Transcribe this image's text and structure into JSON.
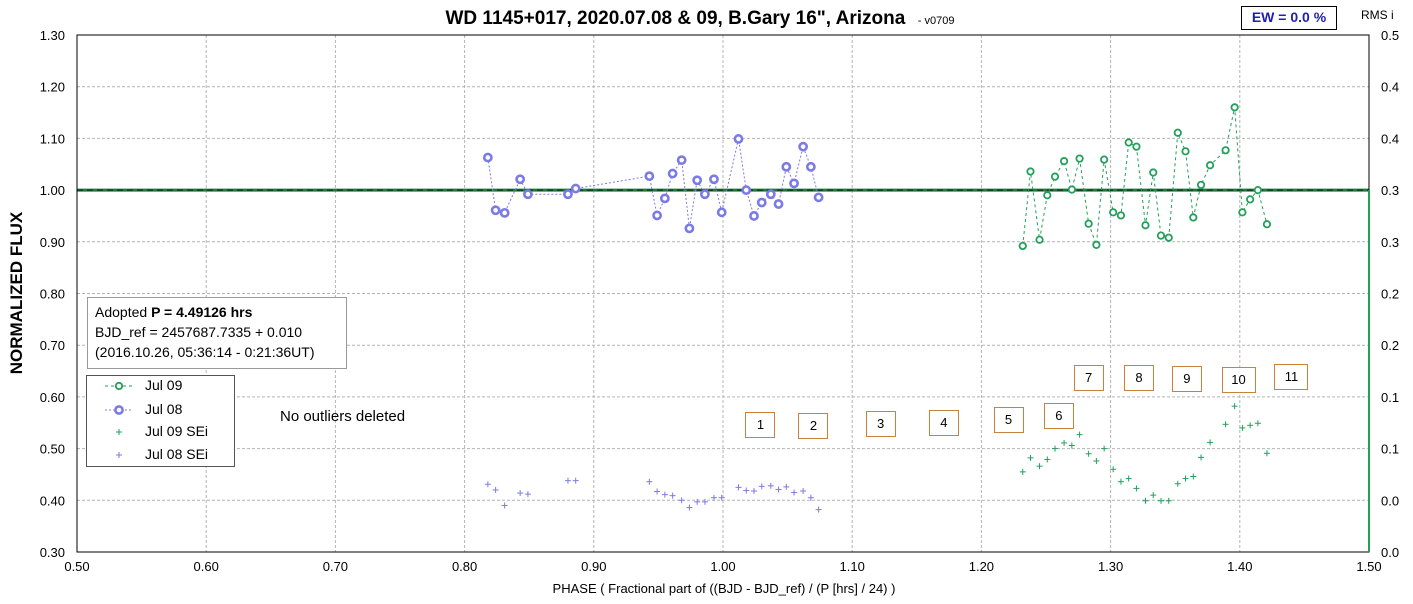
{
  "chart_data": {
    "type": "scatter",
    "title": "WD 1145+017, 2020.07.08 & 09, B.Gary 16\", Arizona",
    "title_suffix": "-  v0709",
    "xlabel": "PHASE ( Fractional part of ((BJD - BJD_ref) / (P [hrs] / 24) )",
    "ylabel": "NORMALIZED FLUX",
    "y2label": "RMS i",
    "xlim": [
      0.5,
      1.5
    ],
    "ylim": [
      0.3,
      1.3
    ],
    "y2lim": [
      0.0,
      0.5
    ],
    "x_ticks": [
      "0.50",
      "0.60",
      "0.70",
      "0.80",
      "0.90",
      "1.00",
      "1.10",
      "1.20",
      "1.30",
      "1.40",
      "1.50"
    ],
    "y_ticks": [
      "0.30",
      "0.40",
      "0.50",
      "0.60",
      "0.70",
      "0.80",
      "0.90",
      "1.00",
      "1.10",
      "1.20",
      "1.30"
    ],
    "y2_ticks": [
      "0.0",
      "0.0",
      "0.1",
      "0.1",
      "0.2",
      "0.2",
      "0.3",
      "0.3",
      "0.4",
      "0.4",
      "0.5"
    ],
    "grid": true,
    "reference_line": 1.0,
    "series": [
      {
        "name": "Jul 09",
        "color": "#22a05a",
        "marker": "circle",
        "x": [
          1.232,
          1.238,
          1.245,
          1.251,
          1.257,
          1.264,
          1.27,
          1.276,
          1.283,
          1.289,
          1.295,
          1.302,
          1.308,
          1.314,
          1.32,
          1.327,
          1.333,
          1.339,
          1.345,
          1.352,
          1.358,
          1.364,
          1.37,
          1.377,
          1.389,
          1.396,
          1.402,
          1.408,
          1.414,
          1.421
        ],
        "y": [
          0.892,
          1.036,
          0.904,
          0.99,
          1.026,
          1.056,
          1.001,
          1.061,
          0.935,
          0.894,
          1.059,
          0.957,
          0.951,
          1.092,
          1.084,
          0.932,
          1.034,
          0.912,
          0.908,
          1.111,
          1.075,
          0.947,
          1.01,
          1.048,
          1.077,
          1.16,
          0.957,
          0.982,
          1.0,
          0.934
        ]
      },
      {
        "name": "Jul 08",
        "color": "#7b7be6",
        "marker": "circle",
        "x": [
          0.818,
          0.824,
          0.831,
          0.843,
          0.849,
          0.88,
          0.886,
          0.943,
          0.949,
          0.955,
          0.961,
          0.968,
          0.974,
          0.98,
          0.986,
          0.993,
          0.999,
          1.012,
          1.018,
          1.024,
          1.03,
          1.037,
          1.043,
          1.049,
          1.055,
          1.062,
          1.068,
          1.074
        ],
        "y": [
          1.063,
          0.961,
          0.956,
          1.021,
          0.992,
          0.992,
          1.003,
          1.027,
          0.951,
          0.984,
          1.032,
          1.058,
          0.926,
          1.019,
          0.992,
          1.021,
          0.957,
          1.099,
          1.0,
          0.95,
          0.976,
          0.992,
          0.973,
          1.045,
          1.013,
          1.084,
          1.045,
          0.986
        ]
      },
      {
        "name": "Jul 09 SEi",
        "color": "#22a05a",
        "marker": "plus",
        "x": [
          1.232,
          1.238,
          1.245,
          1.251,
          1.257,
          1.264,
          1.27,
          1.276,
          1.283,
          1.289,
          1.295,
          1.302,
          1.308,
          1.314,
          1.32,
          1.327,
          1.333,
          1.339,
          1.345,
          1.352,
          1.358,
          1.364,
          1.37,
          1.377,
          1.389,
          1.396,
          1.402,
          1.408,
          1.414,
          1.421
        ],
        "y": [
          0.455,
          0.482,
          0.466,
          0.479,
          0.5,
          0.511,
          0.506,
          0.527,
          0.49,
          0.476,
          0.5,
          0.46,
          0.436,
          0.442,
          0.423,
          0.399,
          0.41,
          0.399,
          0.399,
          0.432,
          0.442,
          0.446,
          0.483,
          0.512,
          0.547,
          0.582,
          0.54,
          0.545,
          0.549,
          0.491
        ]
      },
      {
        "name": "Jul 08 SEi",
        "color": "#7b7be6",
        "marker": "plus",
        "x": [
          0.818,
          0.824,
          0.831,
          0.843,
          0.849,
          0.88,
          0.886,
          0.943,
          0.949,
          0.955,
          0.961,
          0.968,
          0.974,
          0.98,
          0.986,
          0.993,
          0.999,
          1.012,
          1.018,
          1.024,
          1.03,
          1.037,
          1.043,
          1.049,
          1.055,
          1.062,
          1.068,
          1.074
        ],
        "y": [
          0.431,
          0.42,
          0.39,
          0.414,
          0.412,
          0.438,
          0.438,
          0.436,
          0.417,
          0.411,
          0.409,
          0.4,
          0.386,
          0.397,
          0.397,
          0.405,
          0.405,
          0.425,
          0.419,
          0.418,
          0.427,
          0.428,
          0.421,
          0.426,
          0.415,
          0.418,
          0.405,
          0.382
        ]
      }
    ],
    "annotations": [
      {
        "text": "1",
        "x": 1.029,
        "y": 0.545
      },
      {
        "text": "2",
        "x": 1.07,
        "y": 0.544
      },
      {
        "text": "3",
        "x": 1.122,
        "y": 0.547
      },
      {
        "text": "4",
        "x": 1.171,
        "y": 0.549
      },
      {
        "text": "5",
        "x": 1.221,
        "y": 0.556
      },
      {
        "text": "6",
        "x": 1.26,
        "y": 0.563
      },
      {
        "text": "7",
        "x": 1.283,
        "y": 0.636
      },
      {
        "text": "8",
        "x": 1.322,
        "y": 0.636
      },
      {
        "text": "9",
        "x": 1.359,
        "y": 0.634
      },
      {
        "text": "10",
        "x": 1.399,
        "y": 0.633
      },
      {
        "text": "11",
        "x": 1.44,
        "y": 0.638
      }
    ]
  },
  "info_box": {
    "line1_prefix": "Adopted ",
    "line1_bold": "P = 4.49126 hrs",
    "line2": "BJD_ref = 2457687.7335 + 0.010",
    "line3": "(2016.10.26, 05:36:14 - 0:21:36UT)"
  },
  "note": "No outliers deleted",
  "ew_label": "EW = 0.0 %",
  "colors": {
    "jul09": "#22a05a",
    "jul08": "#7b7be6",
    "grid": "#b4b4b4",
    "box_border": "#c8823c"
  }
}
